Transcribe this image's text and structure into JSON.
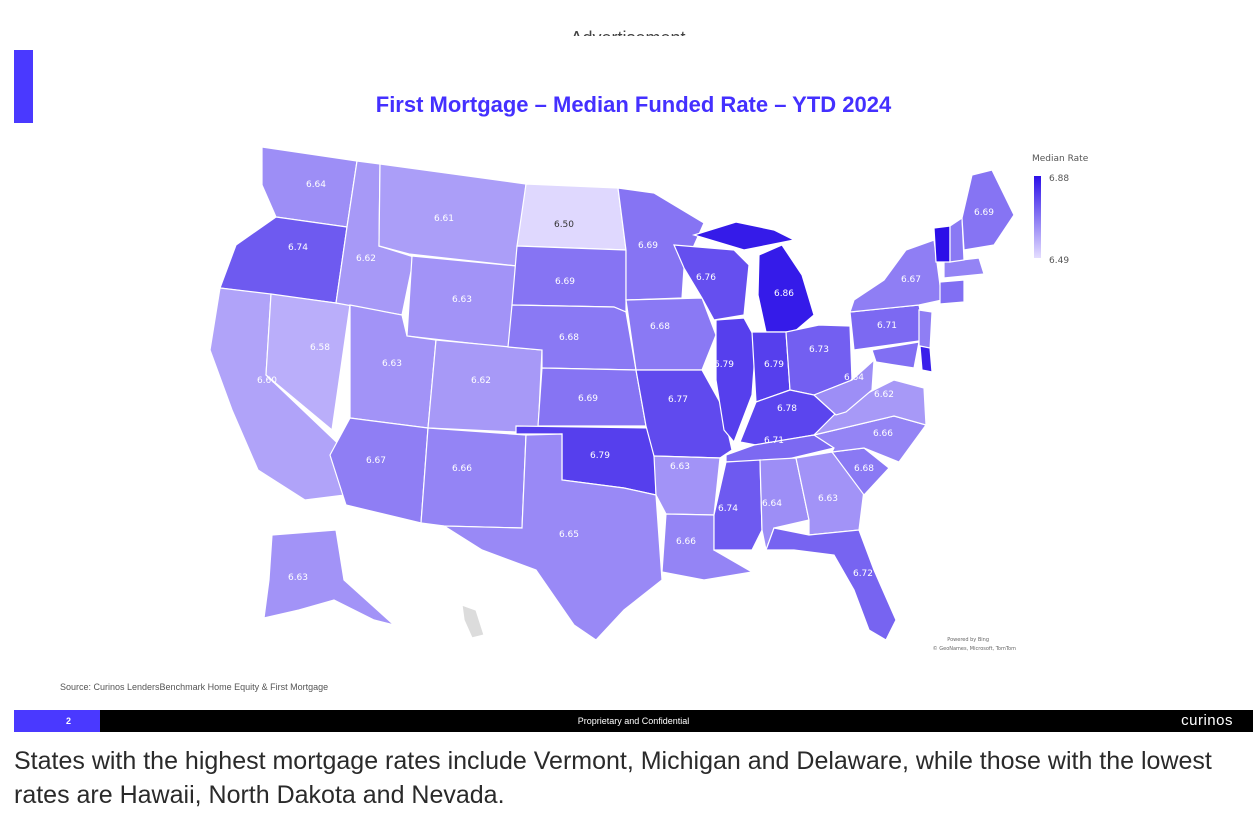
{
  "ad_label": "Advertisement",
  "slide": {
    "title": "First Mortgage – Median Funded Rate – YTD 2024",
    "legend": {
      "title": "Median Rate",
      "max": "6.88",
      "min": "6.49",
      "color_max": "#2c10e8",
      "color_min": "#e4ddff"
    },
    "credit_line1": "Powered by Bing",
    "credit_line2": "© GeoNames, Microsoft, TomTom",
    "source": "Source: Curinos LendersBenchmark Home Equity & First Mortgage",
    "footer": {
      "page": "2",
      "center": "Proprietary and Confidential",
      "brand": "curinos"
    }
  },
  "caption": "States with the highest mortgage rates include Vermont, Michigan and Delaware, while those with the lowest rates are Hawaii, North Dakota and Nevada.",
  "map_data": {
    "metric": "Median Rate",
    "states": [
      {
        "state": "WA",
        "value": 6.64
      },
      {
        "state": "OR",
        "value": 6.74
      },
      {
        "state": "CA",
        "value": 6.6
      },
      {
        "state": "NV",
        "value": 6.58
      },
      {
        "state": "ID",
        "value": 6.62
      },
      {
        "state": "MT",
        "value": 6.61
      },
      {
        "state": "WY",
        "value": 6.63
      },
      {
        "state": "UT",
        "value": 6.63
      },
      {
        "state": "AZ",
        "value": 6.67
      },
      {
        "state": "CO",
        "value": 6.62
      },
      {
        "state": "NM",
        "value": 6.66
      },
      {
        "state": "ND",
        "value": 6.5
      },
      {
        "state": "SD",
        "value": 6.69
      },
      {
        "state": "NE",
        "value": 6.68
      },
      {
        "state": "KS",
        "value": 6.69
      },
      {
        "state": "OK",
        "value": 6.79
      },
      {
        "state": "TX",
        "value": 6.65
      },
      {
        "state": "MN",
        "value": 6.69
      },
      {
        "state": "IA",
        "value": 6.68
      },
      {
        "state": "MO",
        "value": 6.77
      },
      {
        "state": "AR",
        "value": 6.63
      },
      {
        "state": "LA",
        "value": 6.66
      },
      {
        "state": "WI",
        "value": 6.76
      },
      {
        "state": "IL",
        "value": 6.79
      },
      {
        "state": "MI",
        "value": 6.86
      },
      {
        "state": "IN",
        "value": 6.79
      },
      {
        "state": "OH",
        "value": 6.73
      },
      {
        "state": "KY",
        "value": 6.78
      },
      {
        "state": "TN",
        "value": 6.71
      },
      {
        "state": "MS",
        "value": 6.74
      },
      {
        "state": "AL",
        "value": 6.64
      },
      {
        "state": "GA",
        "value": 6.63
      },
      {
        "state": "FL",
        "value": 6.72
      },
      {
        "state": "SC",
        "value": 6.68
      },
      {
        "state": "NC",
        "value": 6.66
      },
      {
        "state": "VA",
        "value": 6.62
      },
      {
        "state": "WV",
        "value": 6.64
      },
      {
        "state": "PA",
        "value": 6.71
      },
      {
        "state": "NY",
        "value": 6.67
      },
      {
        "state": "ME",
        "value": 6.69
      },
      {
        "state": "AK",
        "value": 6.63
      }
    ]
  }
}
